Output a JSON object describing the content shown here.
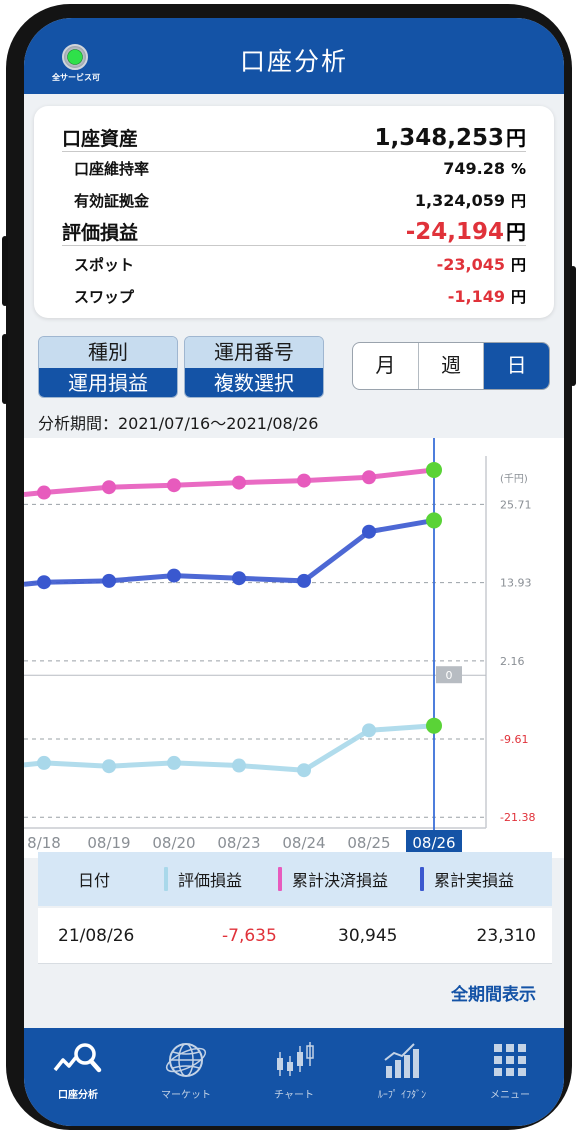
{
  "header": {
    "title": "口座分析",
    "status_label": "全サービス可"
  },
  "summary": {
    "account_assets": {
      "label": "口座資産",
      "value": "1,348,253",
      "unit": "円"
    },
    "maintenance_rate": {
      "label": "口座維持率",
      "value": "749.28",
      "unit": "%"
    },
    "effective_margin": {
      "label": "有効証拠金",
      "value": "1,324,059",
      "unit": "円"
    },
    "valuation_pl": {
      "label": "評価損益",
      "value": "-24,194",
      "unit": "円"
    },
    "spot": {
      "label": "スポット",
      "value": "-23,045",
      "unit": "円"
    },
    "swap": {
      "label": "スワップ",
      "value": "-1,149",
      "unit": "円"
    }
  },
  "selectors": {
    "type": {
      "top": "種別",
      "bottom": "運用損益"
    },
    "number": {
      "top": "運用番号",
      "bottom": "複数選択"
    },
    "period_options": [
      "月",
      "週",
      "日"
    ],
    "selected_period": "日"
  },
  "analysis_period": "分析期間：2021/07/16～2021/08/26",
  "chart_data": {
    "type": "line",
    "unit_label": "(千円)",
    "x": [
      "8/18",
      "08/19",
      "08/20",
      "08/23",
      "08/24",
      "08/25",
      "08/26"
    ],
    "selected_x": "08/26",
    "y_ticks": [
      25.71,
      13.93,
      2.16,
      -9.61,
      -21.38
    ],
    "zero_label": "0",
    "ylim": [
      -23,
      33
    ],
    "grid": true,
    "series": [
      {
        "color": "#e75bbd",
        "values": [
          27.5,
          28.3,
          28.6,
          29.0,
          29.3,
          29.8,
          30.9
        ]
      },
      {
        "color": "#3a58cf",
        "values": [
          14.0,
          14.2,
          15.0,
          14.6,
          14.2,
          21.6,
          23.3
        ]
      },
      {
        "color": "#a9d8ea",
        "values": [
          -13.2,
          -13.7,
          -13.2,
          -13.6,
          -14.3,
          -8.3,
          -7.6
        ]
      }
    ],
    "latest_marker_color": "#5ad337"
  },
  "table": {
    "headers": [
      {
        "label": "日付",
        "color": ""
      },
      {
        "label": "評価損益",
        "color": "#a9d8ea"
      },
      {
        "label": "累計決済損益",
        "color": "#e75bbd"
      },
      {
        "label": "累計実損益",
        "color": "#3a58cf"
      }
    ],
    "row": {
      "date": "21/08/26",
      "valuation": "-7,635",
      "settled": "30,945",
      "realized": "23,310"
    }
  },
  "full_period_link": "全期間表示",
  "tabs": [
    {
      "label": "口座分析",
      "icon": "account-analysis-icon",
      "active": true
    },
    {
      "label": "マーケット",
      "icon": "globe-icon",
      "active": false
    },
    {
      "label": "チャート",
      "icon": "candlestick-icon",
      "active": false
    },
    {
      "label": "ﾙｰﾌﾟ ｲﾌﾀﾞﾝ",
      "icon": "bar-chart-icon",
      "active": false
    },
    {
      "label": "メニュー",
      "icon": "menu-grid-icon",
      "active": false
    }
  ]
}
